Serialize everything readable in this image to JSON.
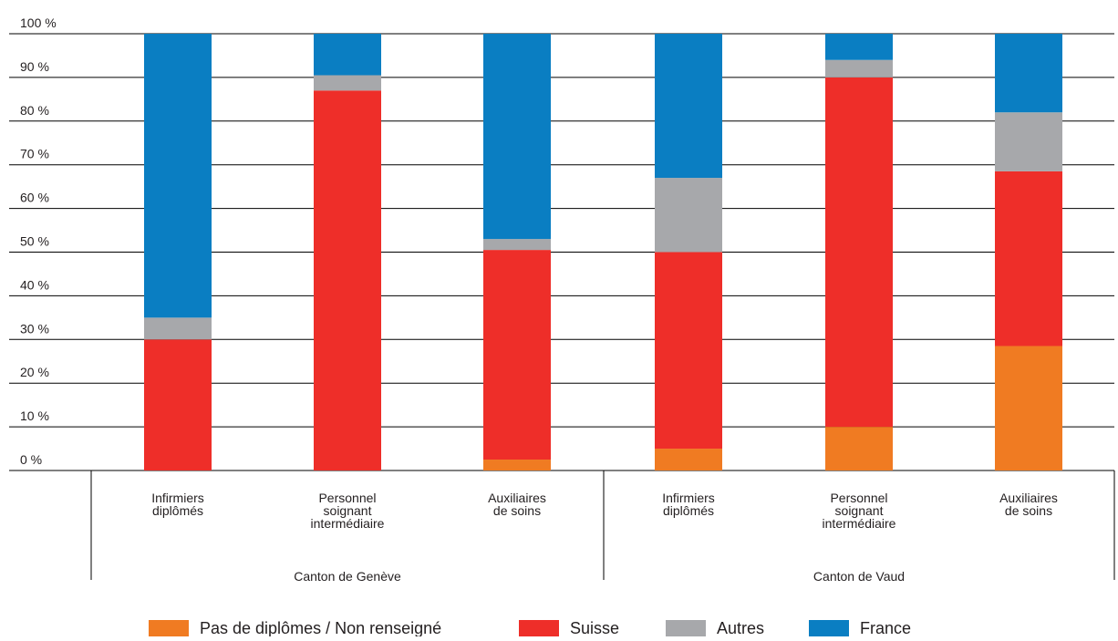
{
  "chart_data": {
    "type": "bar",
    "stacked": true,
    "ylim": [
      0,
      100
    ],
    "yticks": [
      "0 %",
      "10 %",
      "20 %",
      "30 %",
      "40 %",
      "50 %",
      "60 %",
      "70 %",
      "80 %",
      "90 %",
      "100 %"
    ],
    "groups": [
      {
        "label": "Canton de Genève",
        "categories": [
          [
            "Infirmiers",
            "diplômés"
          ],
          [
            "Personnel",
            "soignant",
            "intermédiaire"
          ],
          [
            "Auxiliaires",
            "de soins"
          ]
        ]
      },
      {
        "label": "Canton de Vaud",
        "categories": [
          [
            "Infirmiers",
            "diplômés"
          ],
          [
            "Personnel",
            "soignant",
            "intermédiaire"
          ],
          [
            "Auxiliaires",
            "de soins"
          ]
        ]
      }
    ],
    "series": [
      {
        "name": "Pas de diplômes / Non renseigné",
        "color": "#f07b22",
        "values": [
          0,
          0,
          2.5,
          5,
          10,
          28.5
        ]
      },
      {
        "name": "Suisse",
        "color": "#ee2e29",
        "values": [
          30,
          87,
          48,
          45,
          80,
          40
        ]
      },
      {
        "name": "Autres",
        "color": "#a7a8ab",
        "values": [
          5,
          3.5,
          2.5,
          17,
          4,
          13.5
        ]
      },
      {
        "name": "France",
        "color": "#0a7ec2",
        "values": [
          65,
          9.5,
          47,
          33,
          6,
          18
        ]
      }
    ]
  }
}
